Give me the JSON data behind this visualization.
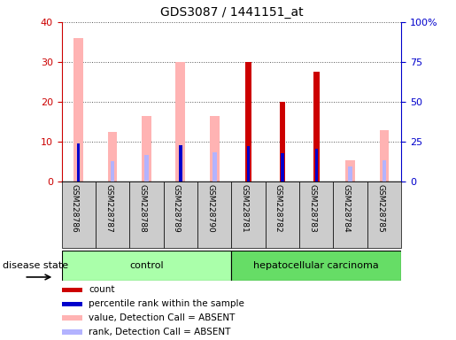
{
  "title": "GDS3087 / 1441151_at",
  "samples": [
    "GSM228786",
    "GSM228787",
    "GSM228788",
    "GSM228789",
    "GSM228790",
    "GSM228781",
    "GSM228782",
    "GSM228783",
    "GSM228784",
    "GSM228785"
  ],
  "count_values": [
    null,
    null,
    null,
    null,
    null,
    30,
    20,
    27.5,
    null,
    null
  ],
  "percentile_values": [
    24,
    null,
    null,
    23,
    null,
    22.5,
    18,
    21,
    null,
    null
  ],
  "value_absent": [
    36,
    12.5,
    16.5,
    30,
    16.5,
    null,
    null,
    null,
    5.5,
    13
  ],
  "rank_absent": [
    null,
    13,
    17,
    null,
    18.5,
    null,
    null,
    null,
    9.5,
    13.5
  ],
  "ylim_left": [
    0,
    40
  ],
  "ylim_right": [
    0,
    100
  ],
  "yticks_left": [
    0,
    10,
    20,
    30,
    40
  ],
  "yticks_right": [
    0,
    25,
    50,
    75,
    100
  ],
  "yticklabels_right": [
    "0",
    "25",
    "50",
    "75",
    "100%"
  ],
  "left_tick_color": "#cc0000",
  "right_tick_color": "#0000cc",
  "value_absent_color": "#ffb3b3",
  "rank_absent_color": "#b3b3ff",
  "count_color": "#cc0000",
  "percentile_color": "#0000cc",
  "ctrl_color": "#aaffaa",
  "hcc_color": "#66dd66",
  "legend_items": [
    {
      "label": "count",
      "color": "#cc0000"
    },
    {
      "label": "percentile rank within the sample",
      "color": "#0000cc"
    },
    {
      "label": "value, Detection Call = ABSENT",
      "color": "#ffb3b3"
    },
    {
      "label": "rank, Detection Call = ABSENT",
      "color": "#b3b3ff"
    }
  ],
  "background_color": "#ffffff",
  "label_box_color": "#cccccc"
}
